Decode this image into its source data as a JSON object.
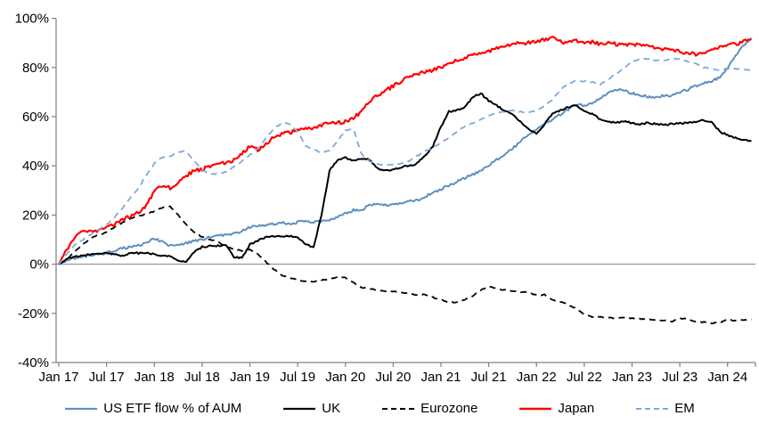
{
  "chart_data": {
    "type": "line",
    "title": "",
    "x_unit": "months since Jan 2017",
    "x_tick_months": [
      0,
      6,
      12,
      18,
      24,
      30,
      36,
      42,
      48,
      54,
      60,
      66,
      72,
      78,
      84
    ],
    "x_tick_labels": [
      "Jan 17",
      "Jul 17",
      "Jan 18",
      "Jul 18",
      "Jan 19",
      "Jul 19",
      "Jan 20",
      "Jul 20",
      "Jan 21",
      "Jul 21",
      "Jan 22",
      "Jul 22",
      "Jan 23",
      "Jul 23",
      "Jan 24"
    ],
    "xlim_months": [
      0,
      87.5
    ],
    "y_ticks": [
      100,
      80,
      60,
      40,
      20,
      0,
      -20,
      -40
    ],
    "y_tick_suffix": "%",
    "ylim": [
      -40,
      100
    ],
    "grid": "zero-line-only",
    "legend_position": "bottom",
    "axis_color": "#808080",
    "series": [
      {
        "name": "US ETF flow % of AUM",
        "color": "#5E8FC0",
        "style": "solid",
        "width": 2,
        "noise": 0.5,
        "values": [
          0,
          1.5,
          2.5,
          3,
          3.5,
          4,
          4.5,
          5.5,
          6.5,
          7,
          7.5,
          8.5,
          10.5,
          9,
          7.5,
          8,
          8.5,
          9.5,
          10,
          11,
          11.5,
          12,
          12.5,
          13.5,
          15,
          15.5,
          16,
          16.5,
          17,
          16.5,
          17,
          17.5,
          17,
          17.5,
          18,
          19,
          20.5,
          22,
          22,
          24,
          24.5,
          24,
          24.5,
          25,
          25.5,
          26,
          27.5,
          29,
          30.5,
          32,
          33.5,
          35,
          36.5,
          38,
          40,
          42.5,
          44.5,
          47,
          50,
          53,
          55,
          57,
          58.5,
          61,
          63,
          65,
          64.5,
          65.5,
          67.5,
          70,
          71,
          70.5,
          69.5,
          69,
          68,
          68,
          68.5,
          68.5,
          70,
          71,
          72.5,
          73.5,
          74.5,
          76,
          80,
          85,
          89,
          92
        ]
      },
      {
        "name": "UK",
        "color": "#000000",
        "style": "solid",
        "width": 2,
        "noise": 0.35,
        "values": [
          0,
          2,
          3,
          3.5,
          4,
          4,
          4.5,
          4,
          3.5,
          4.5,
          4.5,
          4.5,
          4,
          3.5,
          3,
          1.5,
          1,
          5,
          7,
          7.5,
          7.5,
          7.5,
          3,
          2.5,
          8,
          9.5,
          11,
          11.5,
          11,
          11.5,
          11,
          8,
          7,
          20,
          38,
          42.5,
          43.5,
          42,
          43,
          42.5,
          39,
          38,
          38.5,
          39.5,
          40,
          41,
          44,
          48,
          56,
          62,
          62.5,
          64,
          68,
          69.5,
          66.5,
          64.5,
          62.5,
          61,
          58,
          55,
          53,
          57,
          61,
          62.5,
          64,
          64.5,
          62.5,
          61,
          59,
          58,
          57.5,
          58,
          57.5,
          57,
          57.5,
          57,
          56.8,
          57,
          57.2,
          57.5,
          58,
          58.5,
          58,
          54,
          52.5,
          51.5,
          50.5,
          50
        ]
      },
      {
        "name": "Eurozone",
        "color": "#000000",
        "style": "dashed",
        "width": 1.8,
        "noise": 0.2,
        "values": [
          0,
          2,
          5,
          8,
          10.5,
          12,
          13,
          15,
          17,
          18.5,
          19.5,
          20.5,
          21.5,
          23,
          23.5,
          20,
          16,
          13,
          11,
          10,
          9,
          7,
          6,
          5.5,
          6,
          4,
          1,
          -2,
          -4.5,
          -5.5,
          -6.5,
          -7,
          -7,
          -6.5,
          -6,
          -5.2,
          -5.5,
          -7.5,
          -9.5,
          -10,
          -10.5,
          -11,
          -11,
          -11.5,
          -12,
          -12.7,
          -12.3,
          -13.5,
          -14.5,
          -15.5,
          -15.5,
          -14.5,
          -13,
          -10.5,
          -9,
          -10,
          -10.5,
          -11,
          -11.3,
          -11.6,
          -12.7,
          -12.4,
          -14.5,
          -15.3,
          -16.5,
          -18,
          -20.5,
          -21.5,
          -21.5,
          -21.7,
          -22,
          -21.8,
          -22,
          -22.3,
          -22.5,
          -22.7,
          -23,
          -23.3,
          -22,
          -22.3,
          -23.3,
          -23.6,
          -24,
          -23.8,
          -22.5,
          -23,
          -22.8,
          -22.5
        ]
      },
      {
        "name": "Japan",
        "color": "#FF0000",
        "style": "solid",
        "width": 2.2,
        "noise": 0.7,
        "values": [
          0,
          6,
          11,
          13,
          13.5,
          13.5,
          15,
          16.5,
          18,
          19.5,
          21,
          24,
          29.5,
          32,
          31,
          33.5,
          36,
          38,
          38.5,
          40,
          41.5,
          41,
          42.5,
          45,
          48,
          46.5,
          48.5,
          52,
          53,
          53.5,
          54.5,
          55,
          55.5,
          56.5,
          57.5,
          57.5,
          58,
          59.5,
          62,
          66,
          68.5,
          70.5,
          72.5,
          74.5,
          76.5,
          77.5,
          78,
          79,
          80,
          81.5,
          83,
          84,
          85,
          85.5,
          86.5,
          88,
          89,
          89.5,
          90,
          90,
          90.5,
          91.5,
          92,
          90.5,
          90,
          91,
          90,
          90.5,
          89.5,
          90,
          89.5,
          89.5,
          89.5,
          89,
          88.5,
          88,
          87.5,
          87,
          86.5,
          86,
          85.5,
          86,
          87,
          88.5,
          89.5,
          89.5,
          90.5,
          91.5
        ]
      },
      {
        "name": "EM",
        "color": "#7FA9D8",
        "style": "dashed",
        "width": 1.8,
        "noise": 0.25,
        "values": [
          0,
          4,
          8,
          10,
          12,
          14,
          16,
          19,
          23,
          27,
          31,
          36,
          41,
          43.5,
          44,
          45.5,
          46,
          42,
          38.5,
          36.5,
          37,
          37.5,
          39.5,
          42,
          44.5,
          47,
          51,
          55,
          57.5,
          57,
          54,
          48,
          46.5,
          45.5,
          46,
          50,
          54.5,
          55,
          45,
          42,
          40.5,
          40.5,
          40.5,
          41,
          42,
          44,
          46,
          47.5,
          49.5,
          51.5,
          54,
          56,
          57.5,
          59,
          60.5,
          61.5,
          62,
          62.5,
          62,
          61.5,
          62.5,
          64.5,
          67,
          71,
          73.5,
          74.5,
          74.5,
          74,
          73,
          75,
          77.5,
          79.5,
          82.5,
          83.5,
          83.5,
          83,
          83,
          83.5,
          83.5,
          82.5,
          81.5,
          80,
          79.5,
          79,
          79.5,
          79.5,
          79,
          79
        ]
      }
    ]
  },
  "layout_colors": {
    "background": "#FFFFFF",
    "text": "#000000"
  }
}
